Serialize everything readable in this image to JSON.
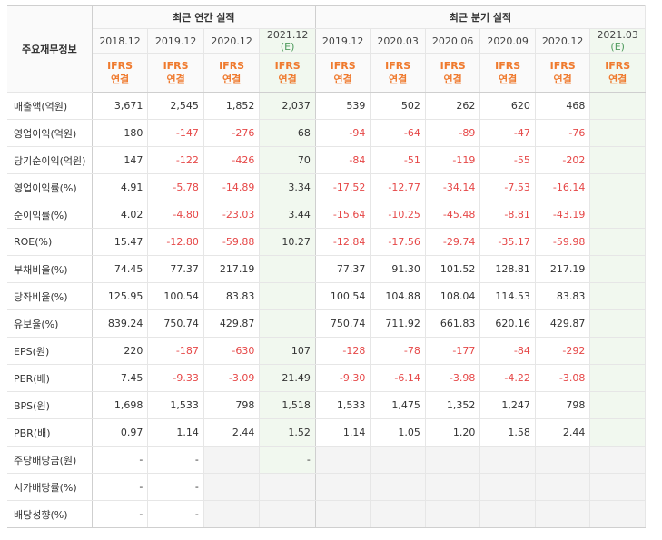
{
  "header": {
    "row_label": "주요재무정보",
    "annual_title": "최근 연간 실적",
    "quarter_title": "최근 분기 실적",
    "annual_periods": [
      "2018.12",
      "2019.12",
      "2020.12",
      "2021.12"
    ],
    "annual_est_mark": "(E)",
    "quarter_periods": [
      "2019.12",
      "2020.03",
      "2020.06",
      "2020.09",
      "2020.12",
      "2021.03"
    ],
    "quarter_est_mark": "(E)",
    "ifrs_top": "IFRS",
    "ifrs_bottom": "연결"
  },
  "rows": [
    {
      "label": "매출액(억원)",
      "annual": [
        "3,671",
        "2,545",
        "1,852",
        "2,037"
      ],
      "quarter": [
        "539",
        "502",
        "262",
        "620",
        "468",
        ""
      ]
    },
    {
      "label": "영업이익(억원)",
      "annual": [
        "180",
        "-147",
        "-276",
        "68"
      ],
      "quarter": [
        "-94",
        "-64",
        "-89",
        "-47",
        "-76",
        ""
      ]
    },
    {
      "label": "당기순이익(억원)",
      "annual": [
        "147",
        "-122",
        "-426",
        "70"
      ],
      "quarter": [
        "-84",
        "-51",
        "-119",
        "-55",
        "-202",
        ""
      ]
    },
    {
      "label": "영업이익률(%)",
      "annual": [
        "4.91",
        "-5.78",
        "-14.89",
        "3.34"
      ],
      "quarter": [
        "-17.52",
        "-12.77",
        "-34.14",
        "-7.53",
        "-16.14",
        ""
      ]
    },
    {
      "label": "순이익률(%)",
      "annual": [
        "4.02",
        "-4.80",
        "-23.03",
        "3.44"
      ],
      "quarter": [
        "-15.64",
        "-10.25",
        "-45.48",
        "-8.81",
        "-43.19",
        ""
      ]
    },
    {
      "label": "ROE(%)",
      "annual": [
        "15.47",
        "-12.80",
        "-59.88",
        "10.27"
      ],
      "quarter": [
        "-12.84",
        "-17.56",
        "-29.74",
        "-35.17",
        "-59.98",
        ""
      ]
    },
    {
      "label": "부채비율(%)",
      "annual": [
        "74.45",
        "77.37",
        "217.19",
        ""
      ],
      "quarter": [
        "77.37",
        "91.30",
        "101.52",
        "128.81",
        "217.19",
        ""
      ]
    },
    {
      "label": "당좌비율(%)",
      "annual": [
        "125.95",
        "100.54",
        "83.83",
        ""
      ],
      "quarter": [
        "100.54",
        "104.88",
        "108.04",
        "114.53",
        "83.83",
        ""
      ]
    },
    {
      "label": "유보율(%)",
      "annual": [
        "839.24",
        "750.74",
        "429.87",
        ""
      ],
      "quarter": [
        "750.74",
        "711.92",
        "661.83",
        "620.16",
        "429.87",
        ""
      ]
    },
    {
      "label": "EPS(원)",
      "annual": [
        "220",
        "-187",
        "-630",
        "107"
      ],
      "quarter": [
        "-128",
        "-78",
        "-177",
        "-84",
        "-292",
        ""
      ]
    },
    {
      "label": "PER(배)",
      "annual": [
        "7.45",
        "-9.33",
        "-3.09",
        "21.49"
      ],
      "quarter": [
        "-9.30",
        "-6.14",
        "-3.98",
        "-4.22",
        "-3.08",
        ""
      ]
    },
    {
      "label": "BPS(원)",
      "annual": [
        "1,698",
        "1,533",
        "798",
        "1,518"
      ],
      "quarter": [
        "1,533",
        "1,475",
        "1,352",
        "1,247",
        "798",
        ""
      ]
    },
    {
      "label": "PBR(배)",
      "annual": [
        "0.97",
        "1.14",
        "2.44",
        "1.52"
      ],
      "quarter": [
        "1.14",
        "1.05",
        "1.20",
        "1.58",
        "2.44",
        ""
      ]
    },
    {
      "label": "주당배당금(원)",
      "annual": [
        "-",
        "-",
        null,
        "-"
      ],
      "quarter": [
        null,
        null,
        null,
        null,
        null,
        null
      ]
    },
    {
      "label": "시가배당률(%)",
      "annual": [
        "-",
        "-",
        null,
        null
      ],
      "quarter": [
        null,
        null,
        null,
        null,
        null,
        null
      ]
    },
    {
      "label": "배당성향(%)",
      "annual": [
        "-",
        "-",
        null,
        null
      ],
      "quarter": [
        null,
        null,
        null,
        null,
        null,
        null
      ]
    }
  ],
  "colors": {
    "negative": "#e64747",
    "ifrs": "#ef7a2e",
    "estimate_bg": "#f1f8ef",
    "estimate_mark": "#4f9b5d"
  }
}
